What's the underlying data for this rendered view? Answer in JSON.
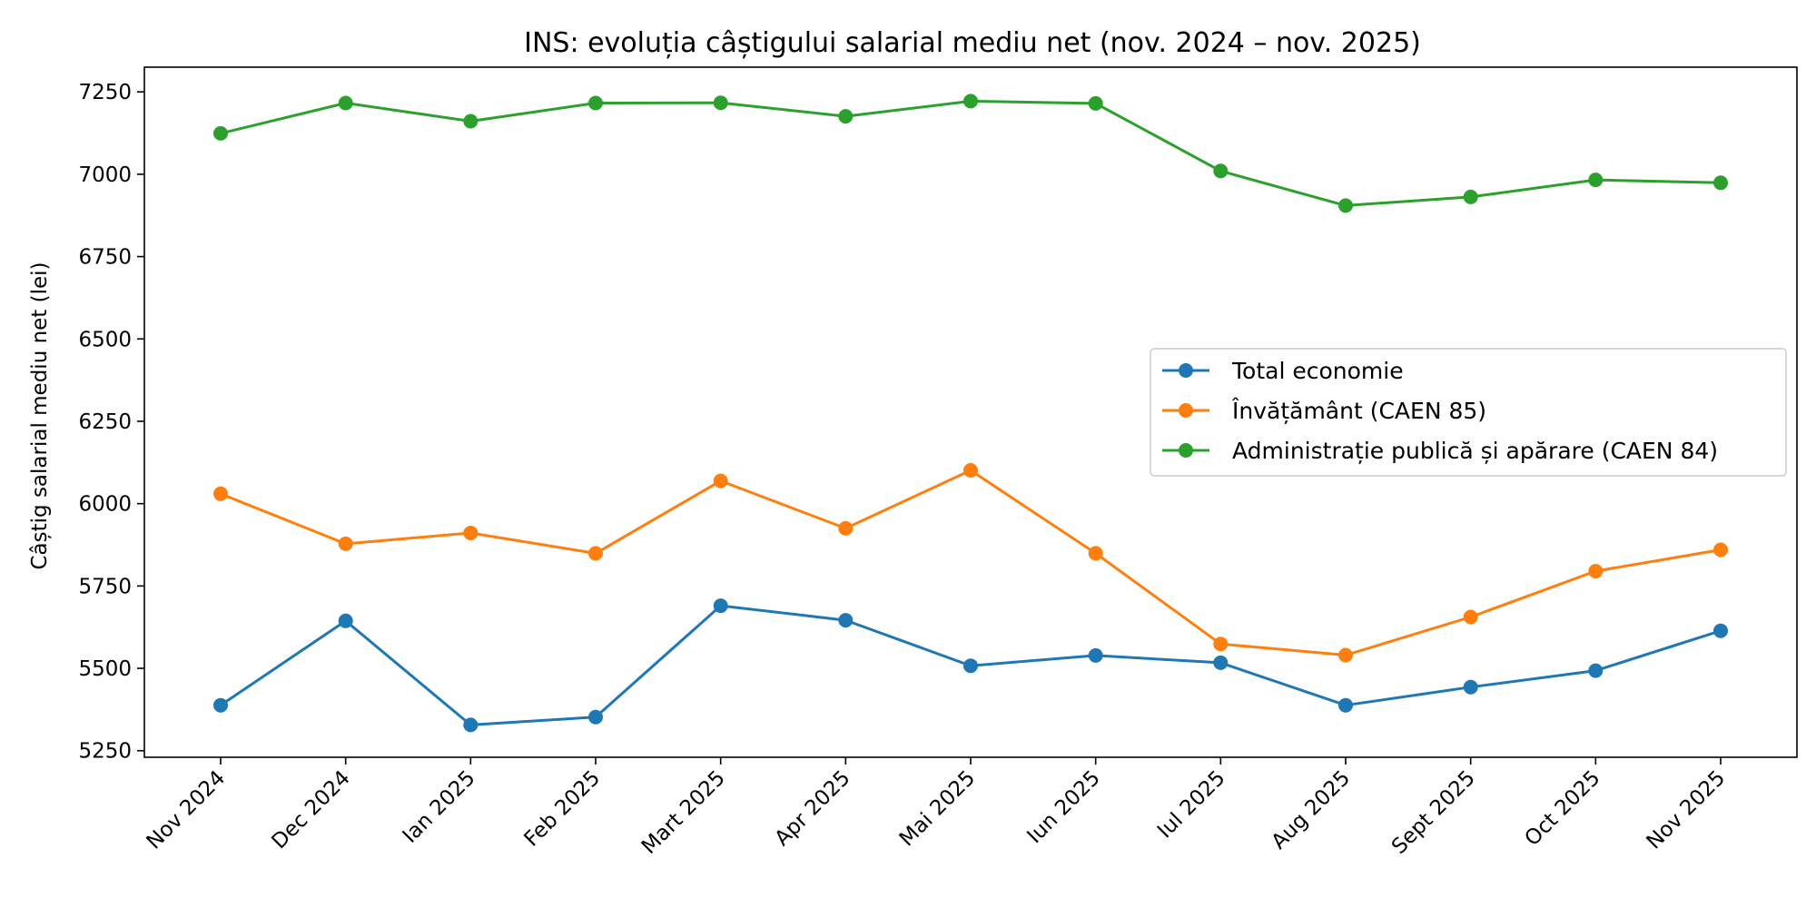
{
  "chart_data": {
    "type": "line",
    "title": "INS: evoluția câștigului salarial mediu net (nov. 2024 – nov. 2025)",
    "xlabel": "",
    "ylabel": "Câștig salarial mediu net (lei)",
    "categories": [
      "Nov 2024",
      "Dec 2024",
      "Ian 2025",
      "Feb 2025",
      "Mart 2025",
      "Apr 2025",
      "Mai 2025",
      "Iun 2025",
      "Iul 2025",
      "Aug 2025",
      "Sept 2025",
      "Oct 2025",
      "Nov 2025"
    ],
    "ylim": [
      5230,
      7325
    ],
    "yticks": [
      5250,
      5500,
      5750,
      6000,
      6250,
      6500,
      6750,
      7000,
      7250
    ],
    "grid": false,
    "legend_position": "center-right",
    "series": [
      {
        "name": "Total economie",
        "color": "#1f77b4",
        "values": [
          5388,
          5644,
          5328,
          5352,
          5690,
          5646,
          5508,
          5539,
          5517,
          5388,
          5443,
          5493,
          5614
        ]
      },
      {
        "name": "Învățământ (CAEN 85)",
        "color": "#ff7f0e",
        "values": [
          6030,
          5878,
          5911,
          5849,
          6069,
          5925,
          6101,
          5849,
          5574,
          5540,
          5656,
          5795,
          5860
        ]
      },
      {
        "name": "Administrație publică și apărare (CAEN 84)",
        "color": "#2ca02c",
        "values": [
          7124,
          7216,
          7161,
          7216,
          7217,
          7176,
          7222,
          7215,
          7010,
          6905,
          6931,
          6983,
          6974
        ]
      }
    ]
  }
}
